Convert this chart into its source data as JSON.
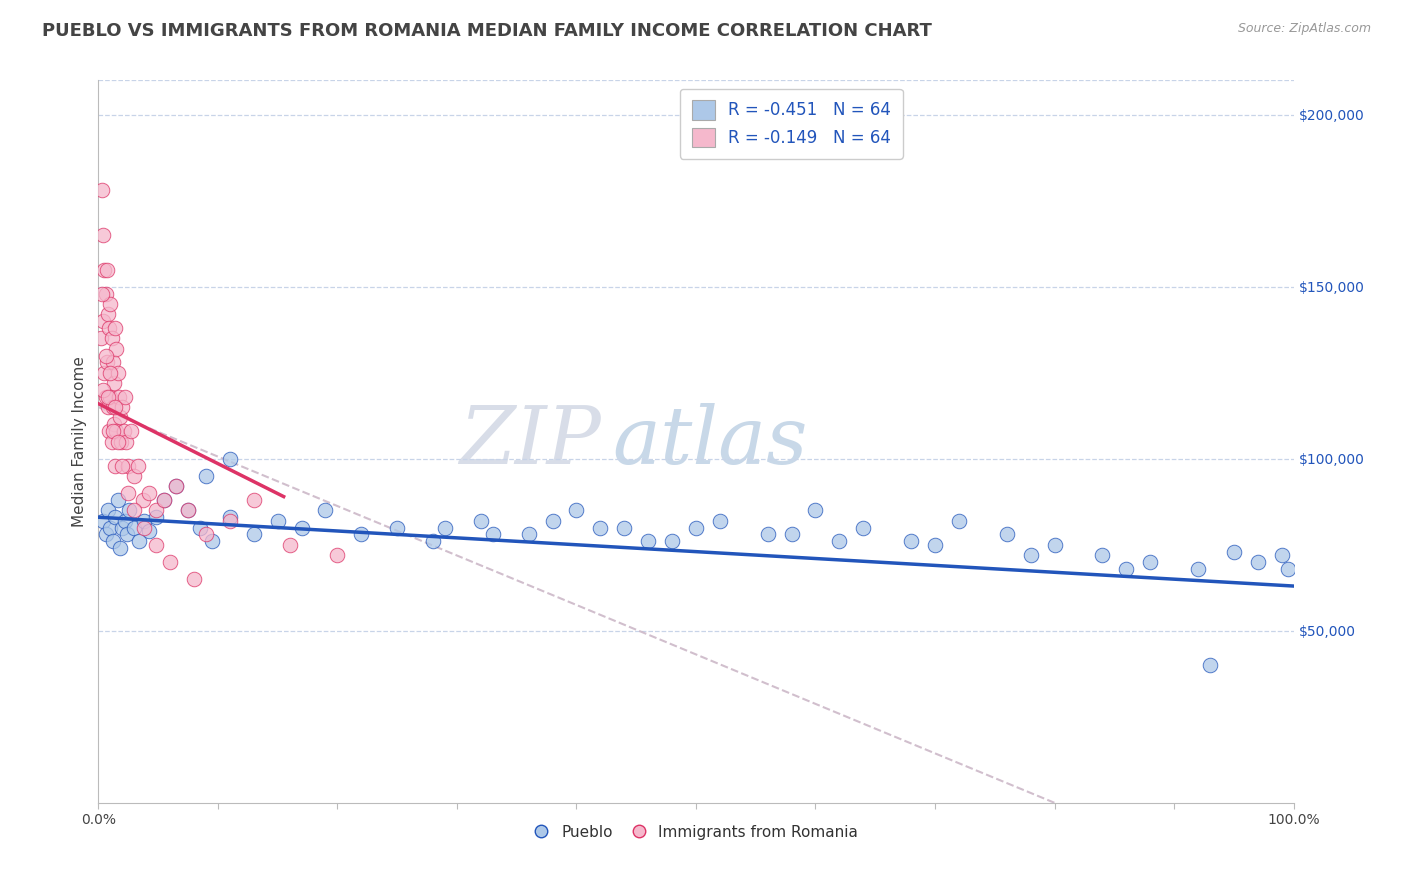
{
  "title": "PUEBLO VS IMMIGRANTS FROM ROMANIA MEDIAN FAMILY INCOME CORRELATION CHART",
  "source": "Source: ZipAtlas.com",
  "ylabel": "Median Family Income",
  "watermark": "ZIPatlas",
  "xlim": [
    0,
    1.0
  ],
  "ylim": [
    0,
    210000
  ],
  "xticklabels": [
    "0.0%",
    "",
    "",
    "",
    "",
    "",
    "",
    "",
    "",
    "",
    "100.0%"
  ],
  "yticks_right": [
    50000,
    100000,
    150000,
    200000
  ],
  "ytick_labels_right": [
    "$50,000",
    "$100,000",
    "$150,000",
    "$200,000"
  ],
  "legend_r1": "R = -0.451",
  "legend_n1": "N = 64",
  "legend_r2": "R = -0.149",
  "legend_n2": "N = 64",
  "blue_color": "#adc8e8",
  "pink_color": "#f5b8cc",
  "trend_blue": "#2255bb",
  "trend_pink": "#dd3366",
  "trend_dashed_color": "#ccb8c8",
  "grid_color": "#c8d4e8",
  "background_color": "#ffffff",
  "pueblo_scatter_x": [
    0.004,
    0.006,
    0.008,
    0.01,
    0.012,
    0.014,
    0.016,
    0.018,
    0.02,
    0.022,
    0.024,
    0.026,
    0.03,
    0.034,
    0.038,
    0.042,
    0.048,
    0.055,
    0.065,
    0.075,
    0.085,
    0.095,
    0.11,
    0.13,
    0.15,
    0.17,
    0.19,
    0.22,
    0.25,
    0.28,
    0.32,
    0.36,
    0.4,
    0.44,
    0.48,
    0.52,
    0.56,
    0.6,
    0.64,
    0.68,
    0.72,
    0.76,
    0.8,
    0.84,
    0.88,
    0.92,
    0.95,
    0.97,
    0.99,
    0.995,
    0.09,
    0.11,
    0.29,
    0.33,
    0.46,
    0.5,
    0.38,
    0.42,
    0.58,
    0.62,
    0.7,
    0.78,
    0.86,
    0.93
  ],
  "pueblo_scatter_y": [
    82000,
    78000,
    85000,
    80000,
    76000,
    83000,
    88000,
    74000,
    80000,
    82000,
    78000,
    85000,
    80000,
    76000,
    82000,
    79000,
    83000,
    88000,
    92000,
    85000,
    80000,
    76000,
    83000,
    78000,
    82000,
    80000,
    85000,
    78000,
    80000,
    76000,
    82000,
    78000,
    85000,
    80000,
    76000,
    82000,
    78000,
    85000,
    80000,
    76000,
    82000,
    78000,
    75000,
    72000,
    70000,
    68000,
    73000,
    70000,
    72000,
    68000,
    95000,
    100000,
    80000,
    78000,
    76000,
    80000,
    82000,
    80000,
    78000,
    76000,
    75000,
    72000,
    68000,
    40000
  ],
  "romania_scatter_x": [
    0.002,
    0.003,
    0.004,
    0.004,
    0.005,
    0.005,
    0.006,
    0.006,
    0.007,
    0.007,
    0.008,
    0.008,
    0.009,
    0.009,
    0.01,
    0.01,
    0.011,
    0.011,
    0.012,
    0.012,
    0.013,
    0.013,
    0.014,
    0.014,
    0.015,
    0.015,
    0.016,
    0.017,
    0.018,
    0.019,
    0.02,
    0.021,
    0.022,
    0.023,
    0.025,
    0.027,
    0.03,
    0.033,
    0.037,
    0.042,
    0.048,
    0.055,
    0.065,
    0.075,
    0.09,
    0.11,
    0.13,
    0.16,
    0.2,
    0.003,
    0.004,
    0.006,
    0.008,
    0.01,
    0.012,
    0.014,
    0.016,
    0.02,
    0.025,
    0.03,
    0.038,
    0.048,
    0.06,
    0.08
  ],
  "romania_scatter_y": [
    135000,
    178000,
    165000,
    140000,
    155000,
    125000,
    148000,
    118000,
    155000,
    128000,
    142000,
    115000,
    138000,
    108000,
    145000,
    118000,
    135000,
    105000,
    128000,
    115000,
    122000,
    110000,
    138000,
    98000,
    132000,
    108000,
    125000,
    118000,
    112000,
    105000,
    115000,
    108000,
    118000,
    105000,
    98000,
    108000,
    95000,
    98000,
    88000,
    90000,
    85000,
    88000,
    92000,
    85000,
    78000,
    82000,
    88000,
    75000,
    72000,
    148000,
    120000,
    130000,
    118000,
    125000,
    108000,
    115000,
    105000,
    98000,
    90000,
    85000,
    80000,
    75000,
    70000,
    65000
  ],
  "title_fontsize": 13,
  "label_fontsize": 11,
  "tick_fontsize": 10,
  "legend_fontsize": 12
}
